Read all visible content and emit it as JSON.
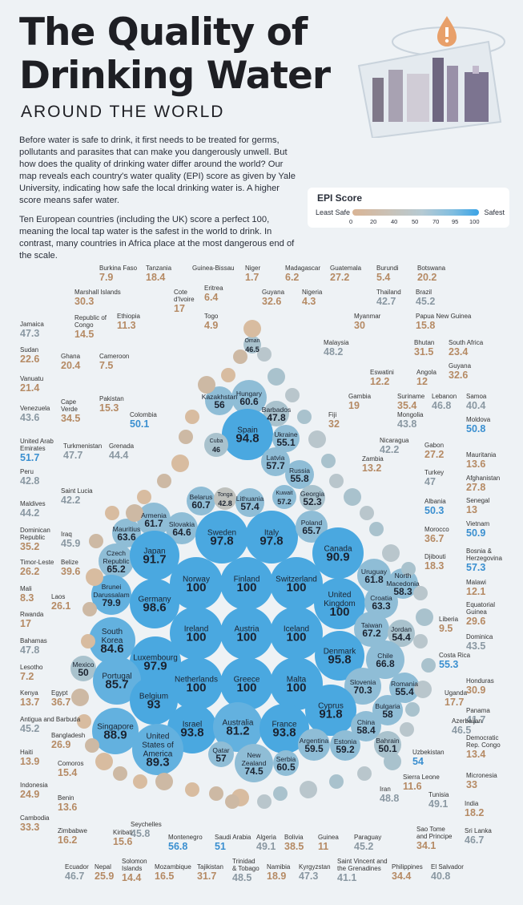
{
  "title_line1": "The Quality of",
  "title_line2": "Drinking Water",
  "subtitle": "AROUND THE WORLD",
  "intro_p1": "Before water is safe to drink, it first needs to be treated for germs, pollutants and parasites that can make you dangerously unwell. But how does the quality of drinking water differ around the world? Our map reveals each country's water quality (EPI) score as given by Yale University, indicating how safe the local drinking water is. A higher score means safer water.",
  "intro_p2": "Ten European countries (including the UK) score a perfect 100, meaning the local tap water is the safest in the world to drink. In contrast, many countries in Africa place at the most dangerous end of the scale.",
  "legend": {
    "title": "EPI Score",
    "left": "Least Safe",
    "right": "Safest",
    "ticks": [
      "0",
      "20",
      "40",
      "50",
      "70",
      "95",
      "100"
    ]
  },
  "colors": {
    "low": "#c8a585",
    "mid": "#a9b8bf",
    "high": "#3aa3e6",
    "bubble_high": "#4aa8e0"
  },
  "chart_data": {
    "type": "bubble",
    "metric": "EPI Score",
    "inner": [
      {
        "c": "Oman",
        "v": 46.5
      },
      {
        "c": "Hungary",
        "v": 60.6
      },
      {
        "c": "Kazakhstan",
        "v": 56
      },
      {
        "c": "Barbados",
        "v": 47.8
      },
      {
        "c": "Spain",
        "v": 94.8
      },
      {
        "c": "Ukraine",
        "v": 55.1
      },
      {
        "c": "Cuba",
        "v": 46
      },
      {
        "c": "Latvia",
        "v": 57.7
      },
      {
        "c": "Russia",
        "v": 55.8
      },
      {
        "c": "Belarus",
        "v": 60.7
      },
      {
        "c": "Tonga",
        "v": 42.8
      },
      {
        "c": "Lithuania",
        "v": 57.4
      },
      {
        "c": "Kuwait",
        "v": 57.2
      },
      {
        "c": "Georgia",
        "v": 52.3
      },
      {
        "c": "Armenia",
        "v": 61.7
      },
      {
        "c": "Slovakia",
        "v": 64.6
      },
      {
        "c": "Sweden",
        "v": 97.8
      },
      {
        "c": "Italy",
        "v": 97.8
      },
      {
        "c": "Poland",
        "v": 65.7
      },
      {
        "c": "Mauritius",
        "v": 63.6
      },
      {
        "c": "Czech Republic",
        "v": 65.2
      },
      {
        "c": "Japan",
        "v": 91.7
      },
      {
        "c": "Canada",
        "v": 90.9
      },
      {
        "c": "Norway",
        "v": 100
      },
      {
        "c": "Finland",
        "v": 100
      },
      {
        "c": "Switzerland",
        "v": 100
      },
      {
        "c": "Uruguay",
        "v": 61.8
      },
      {
        "c": "North Macedonia",
        "v": 58.3
      },
      {
        "c": "Brunei Darussalam",
        "v": 79.9
      },
      {
        "c": "Germany",
        "v": 98.6
      },
      {
        "c": "United Kingdom",
        "v": 100
      },
      {
        "c": "Croatia",
        "v": 63.3
      },
      {
        "c": "Ireland",
        "v": 100
      },
      {
        "c": "Austria",
        "v": 100
      },
      {
        "c": "Iceland",
        "v": 100
      },
      {
        "c": "Taiwan",
        "v": 67.2
      },
      {
        "c": "South Korea",
        "v": 84.6
      },
      {
        "c": "Jordan",
        "v": 54.4
      },
      {
        "c": "Luxembourg",
        "v": 97.9
      },
      {
        "c": "Denmark",
        "v": 95.8
      },
      {
        "c": "Mexico",
        "v": 50
      },
      {
        "c": "Chile",
        "v": 66.8
      },
      {
        "c": "Portugal",
        "v": 85.7
      },
      {
        "c": "Netherlands",
        "v": 100
      },
      {
        "c": "Greece",
        "v": 100
      },
      {
        "c": "Malta",
        "v": 100
      },
      {
        "c": "Slovenia",
        "v": 70.3
      },
      {
        "c": "Romania",
        "v": 55.4
      },
      {
        "c": "Belgium",
        "v": 93
      },
      {
        "c": "Cyprus",
        "v": 91.8
      },
      {
        "c": "Bulgaria",
        "v": 58
      },
      {
        "c": "Singapore",
        "v": 88.9
      },
      {
        "c": "Israel",
        "v": 93.8
      },
      {
        "c": "Australia",
        "v": 81.2
      },
      {
        "c": "France",
        "v": 93.8
      },
      {
        "c": "China",
        "v": 58.4
      },
      {
        "c": "United States of America",
        "v": 89.3
      },
      {
        "c": "Bahrain",
        "v": 50.1
      },
      {
        "c": "Argentina",
        "v": 59.5
      },
      {
        "c": "Estonia",
        "v": 59.2
      },
      {
        "c": "Qatar",
        "v": 57
      },
      {
        "c": "New Zealand",
        "v": 74.5
      },
      {
        "c": "Serbia",
        "v": 60.5
      }
    ],
    "outer": [
      {
        "c": "Burkina Faso",
        "v": 7.9
      },
      {
        "c": "Tanzania",
        "v": 18.4
      },
      {
        "c": "Guinea-Bissau",
        "v": null
      },
      {
        "c": "Niger",
        "v": 1.7
      },
      {
        "c": "Madagascar",
        "v": 6.2
      },
      {
        "c": "Guatemala",
        "v": 27.2
      },
      {
        "c": "Burundi",
        "v": 5.4
      },
      {
        "c": "Botswana",
        "v": 20.2
      },
      {
        "c": "Cote d'Ivoire",
        "v": 17
      },
      {
        "c": "Eritrea",
        "v": 6.4
      },
      {
        "c": "Guyana",
        "v": 32.6
      },
      {
        "c": "Nigeria",
        "v": 4.3
      },
      {
        "c": "Marshall Islands",
        "v": 30.3
      },
      {
        "c": "Togo",
        "v": 4.9
      },
      {
        "c": "Thailand",
        "v": 42.7
      },
      {
        "c": "Brazil",
        "v": 45.2
      },
      {
        "c": "Republic of Congo",
        "v": 14.5
      },
      {
        "c": "Ethiopia",
        "v": 11.3
      },
      {
        "c": "Myanmar",
        "v": 30
      },
      {
        "c": "Papua New Guinea",
        "v": 15.8
      },
      {
        "c": "Jamaica",
        "v": 47.3
      },
      {
        "c": "Malaysia",
        "v": 48.2
      },
      {
        "c": "Bhutan",
        "v": 31.5
      },
      {
        "c": "South Africa",
        "v": 23.4
      },
      {
        "c": "Sudan",
        "v": 22.6
      },
      {
        "c": "Ghana",
        "v": 20.4
      },
      {
        "c": "Cameroon",
        "v": 7.5
      },
      {
        "c": "Eswatini",
        "v": 12.2
      },
      {
        "c": "Angola",
        "v": 12
      },
      {
        "c": "Guyana",
        "v": 32.6
      },
      {
        "c": "Vanuatu",
        "v": 21.4
      },
      {
        "c": "Pakistan",
        "v": 15.3
      },
      {
        "c": "Gambia",
        "v": 19
      },
      {
        "c": "Suriname",
        "v": 35.4
      },
      {
        "c": "Lebanon",
        "v": 46.8
      },
      {
        "c": "Samoa",
        "v": 40.4
      },
      {
        "c": "Venezuela",
        "v": 43.6
      },
      {
        "c": "Cape Verde",
        "v": 34.5
      },
      {
        "c": "Colombia",
        "v": 50.1
      },
      {
        "c": "Fiji",
        "v": 32
      },
      {
        "c": "Mongolia",
        "v": 43.8
      },
      {
        "c": "Moldova",
        "v": 50.8
      },
      {
        "c": "United Arab Emirates",
        "v": 51.7
      },
      {
        "c": "Turkmenistan",
        "v": 47.7
      },
      {
        "c": "Grenada",
        "v": 44.4
      },
      {
        "c": "Nicaragua",
        "v": 42.2
      },
      {
        "c": "Gabon",
        "v": 27.2
      },
      {
        "c": "Zambia",
        "v": 13.2
      },
      {
        "c": "Mauritania",
        "v": 13.6
      },
      {
        "c": "Peru",
        "v": 42.8
      },
      {
        "c": "Saint Lucia",
        "v": 42.2
      },
      {
        "c": "Turkey",
        "v": 47
      },
      {
        "c": "Afghanistan",
        "v": 27.8
      },
      {
        "c": "Maldives",
        "v": 44.2
      },
      {
        "c": "Albania",
        "v": 50.3
      },
      {
        "c": "Senegal",
        "v": 13
      },
      {
        "c": "Dominican Republic",
        "v": 35.2
      },
      {
        "c": "Iraq",
        "v": 45.9
      },
      {
        "c": "Morocco",
        "v": 36.7
      },
      {
        "c": "Vietnam",
        "v": 50.9
      },
      {
        "c": "Timor-Leste",
        "v": 26.2
      },
      {
        "c": "Belize",
        "v": 39.6
      },
      {
        "c": "Djibouti",
        "v": 18.3
      },
      {
        "c": "Bosnia & Herzegovina",
        "v": 57.3
      },
      {
        "c": "Mali",
        "v": 8.3
      },
      {
        "c": "Laos",
        "v": 26.1
      },
      {
        "c": "Malawi",
        "v": 12.1
      },
      {
        "c": "Rwanda",
        "v": 17
      },
      {
        "c": "Equatorial Guinea",
        "v": 29.6
      },
      {
        "c": "Liberia",
        "v": 9.5
      },
      {
        "c": "Bahamas",
        "v": 47.8
      },
      {
        "c": "Dominica",
        "v": 43.5
      },
      {
        "c": "Lesotho",
        "v": 7.2
      },
      {
        "c": "Costa Rica",
        "v": 55.3
      },
      {
        "c": "Honduras",
        "v": 30.9
      },
      {
        "c": "Kenya",
        "v": 13.7
      },
      {
        "c": "Egypt",
        "v": 36.7
      },
      {
        "c": "Uganda",
        "v": 17.7
      },
      {
        "c": "Panama",
        "v": 41.7
      },
      {
        "c": "Antigua and Barbuda",
        "v": 45.2
      },
      {
        "c": "Azerbaijan",
        "v": 46.5
      },
      {
        "c": "Bangladesh",
        "v": 26.9
      },
      {
        "c": "Democratic Rep. Congo",
        "v": 13.4
      },
      {
        "c": "Haiti",
        "v": 13.9
      },
      {
        "c": "Comoros",
        "v": 15.4
      },
      {
        "c": "Uzbekistan",
        "v": 54
      },
      {
        "c": "Micronesia",
        "v": 33
      },
      {
        "c": "Sierra Leone",
        "v": 11.6
      },
      {
        "c": "Indonesia",
        "v": 24.9
      },
      {
        "c": "Benin",
        "v": 13.6
      },
      {
        "c": "Iran",
        "v": 48.8
      },
      {
        "c": "Tunisia",
        "v": 49.1
      },
      {
        "c": "India",
        "v": 18.2
      },
      {
        "c": "Cambodia",
        "v": 33.3
      },
      {
        "c": "Seychelles",
        "v": 45.8
      },
      {
        "c": "Sri Lanka",
        "v": 46.7
      },
      {
        "c": "Zimbabwe",
        "v": 16.2
      },
      {
        "c": "Kiribati",
        "v": 15.6
      },
      {
        "c": "Montenegro",
        "v": 56.8
      },
      {
        "c": "Saudi Arabia",
        "v": 51
      },
      {
        "c": "Algeria",
        "v": 49.1
      },
      {
        "c": "Bolivia",
        "v": 38.5
      },
      {
        "c": "Guinea",
        "v": 11
      },
      {
        "c": "Paraguay",
        "v": 45.2
      },
      {
        "c": "Sao Tome and Principe",
        "v": 34.1
      },
      {
        "c": "Ecuador",
        "v": 46.7
      },
      {
        "c": "Nepal",
        "v": 25.9
      },
      {
        "c": "Solomon Islands",
        "v": 14.4
      },
      {
        "c": "Mozambique",
        "v": 16.5
      },
      {
        "c": "Tajikistan",
        "v": 31.7
      },
      {
        "c": "Trinidad & Tobago",
        "v": 48.5
      },
      {
        "c": "Namibia",
        "v": 18.9
      },
      {
        "c": "Kyrgyzstan",
        "v": 47.3
      },
      {
        "c": "Saint Vincent and the Grenadines",
        "v": 41.1
      },
      {
        "c": "Philippines",
        "v": 34.4
      },
      {
        "c": "El Salvador",
        "v": 40.8
      }
    ]
  },
  "inner_display": [
    [
      "Oman",
      "46.5"
    ],
    [
      "Hungary",
      "60.6"
    ],
    [
      "Kazakhstan",
      "56"
    ],
    [
      "Barbados",
      "47.8"
    ],
    [
      "Spain",
      "94.8"
    ],
    [
      "Ukraine",
      "55.1"
    ],
    [
      "Cuba",
      "46"
    ],
    [
      "Latvia",
      "57.7"
    ],
    [
      "Russia",
      "55.8"
    ],
    [
      "Belarus",
      "60.7"
    ],
    [
      "Tonga",
      "42.8"
    ],
    [
      "Lithuania",
      "57.4"
    ],
    [
      "Kuwait",
      "57.2"
    ],
    [
      "Georgia",
      "52.3"
    ],
    [
      "Armenia",
      "61.7"
    ],
    [
      "Slovakia",
      "64.6"
    ],
    [
      "Sweden",
      "97.8"
    ],
    [
      "Italy",
      "97.8"
    ],
    [
      "Poland",
      "65.7"
    ],
    [
      "Mauritius",
      "63.6"
    ],
    [
      "Czech\nRepublic",
      "65.2"
    ],
    [
      "Japan",
      "91.7"
    ],
    [
      "Canada",
      "90.9"
    ],
    [
      "Norway",
      "100"
    ],
    [
      "Finland",
      "100"
    ],
    [
      "Switzerland",
      "100"
    ],
    [
      "Uruguay",
      "61.8"
    ],
    [
      "North\nMacedonia",
      "58.3"
    ],
    [
      "Brunei\nDarussalam",
      "79.9"
    ],
    [
      "Germany",
      "98.6"
    ],
    [
      "United\nKingdom",
      "100"
    ],
    [
      "Croatia",
      "63.3"
    ],
    [
      "Ireland",
      "100"
    ],
    [
      "Austria",
      "100"
    ],
    [
      "Iceland",
      "100"
    ],
    [
      "Taiwan",
      "67.2"
    ],
    [
      "South\nKorea",
      "84.6"
    ],
    [
      "Jordan",
      "54.4"
    ],
    [
      "Luxembourg",
      "97.9"
    ],
    [
      "Denmark",
      "95.8"
    ],
    [
      "Mexico",
      "50"
    ],
    [
      "Chile",
      "66.8"
    ],
    [
      "Portugal",
      "85.7"
    ],
    [
      "Netherlands",
      "100"
    ],
    [
      "Greece",
      "100"
    ],
    [
      "Malta",
      "100"
    ],
    [
      "Slovenia",
      "70.3"
    ],
    [
      "Romania",
      "55.4"
    ],
    [
      "Belgium",
      "93"
    ],
    [
      "Cyprus",
      "91.8"
    ],
    [
      "Bulgaria",
      "58"
    ],
    [
      "Singapore",
      "88.9"
    ],
    [
      "Israel",
      "93.8"
    ],
    [
      "Australia",
      "81.2"
    ],
    [
      "France",
      "93.8"
    ],
    [
      "China",
      "58.4"
    ],
    [
      "United\nStates of\nAmerica",
      "89.3"
    ],
    [
      "Bahrain",
      "50.1"
    ],
    [
      "Argentina",
      "59.5"
    ],
    [
      "Estonia",
      "59.2"
    ],
    [
      "Qatar",
      "57"
    ],
    [
      "New\nZealand",
      "74.5"
    ],
    [
      "Serbia",
      "60.5"
    ]
  ],
  "outer_display": [
    [
      "Burkina Faso",
      "7.9"
    ],
    [
      "Tanzania",
      "18.4"
    ],
    [
      "Guinea-Bissau",
      ""
    ],
    [
      "Niger",
      "1.7"
    ],
    [
      "Madagascar",
      "6.2"
    ],
    [
      "Guatemala",
      "27.2"
    ],
    [
      "Burundi",
      "5.4"
    ],
    [
      "Botswana",
      "20.2"
    ],
    [
      "Cote\nd'Ivoire",
      "17"
    ],
    [
      "Eritrea",
      "6.4"
    ],
    [
      "Guyana",
      "32.6"
    ],
    [
      "Nigeria",
      "4.3"
    ],
    [
      "Marshall Islands",
      "30.3"
    ],
    [
      "Togo",
      "4.9"
    ],
    [
      "Thailand",
      "42.7"
    ],
    [
      "Brazil",
      "45.2"
    ],
    [
      "Republic of\nCongo",
      "14.5"
    ],
    [
      "Ethiopia",
      "11.3"
    ],
    [
      "Myanmar",
      "30"
    ],
    [
      "Papua New Guinea",
      "15.8"
    ],
    [
      "Jamaica",
      "47.3"
    ],
    [
      "Malaysia",
      "48.2"
    ],
    [
      "Bhutan",
      "31.5"
    ],
    [
      "South Africa",
      "23.4"
    ],
    [
      "Sudan",
      "22.6"
    ],
    [
      "Ghana",
      "20.4"
    ],
    [
      "Cameroon",
      "7.5"
    ],
    [
      "Eswatini",
      "12.2"
    ],
    [
      "Angola",
      "12"
    ],
    [
      "Guyana",
      "32.6"
    ],
    [
      "Vanuatu",
      "21.4"
    ],
    [
      "Pakistan",
      "15.3"
    ],
    [
      "Gambia",
      "19"
    ],
    [
      "Suriname",
      "35.4"
    ],
    [
      "Lebanon",
      "46.8"
    ],
    [
      "Samoa",
      "40.4"
    ],
    [
      "Venezuela",
      "43.6"
    ],
    [
      "Cape\nVerde",
      "34.5"
    ],
    [
      "Colombia",
      "50.1"
    ],
    [
      "Fiji",
      "32"
    ],
    [
      "Mongolia",
      "43.8"
    ],
    [
      "Moldova",
      "50.8"
    ],
    [
      "United Arab\nEmirates",
      "51.7"
    ],
    [
      "Turkmenistan",
      "47.7"
    ],
    [
      "Grenada",
      "44.4"
    ],
    [
      "Nicaragua",
      "42.2"
    ],
    [
      "Gabon",
      "27.2"
    ],
    [
      "Zambia",
      "13.2"
    ],
    [
      "Mauritania",
      "13.6"
    ],
    [
      "Peru",
      "42.8"
    ],
    [
      "Saint Lucia",
      "42.2"
    ],
    [
      "Turkey",
      "47"
    ],
    [
      "Afghanistan",
      "27.8"
    ],
    [
      "Maldives",
      "44.2"
    ],
    [
      "Albania",
      "50.3"
    ],
    [
      "Senegal",
      "13"
    ],
    [
      "Dominican\nRepublic",
      "35.2"
    ],
    [
      "Iraq",
      "45.9"
    ],
    [
      "Morocco",
      "36.7"
    ],
    [
      "Vietnam",
      "50.9"
    ],
    [
      "Timor-Leste",
      "26.2"
    ],
    [
      "Belize",
      "39.6"
    ],
    [
      "Djibouti",
      "18.3"
    ],
    [
      "Bosnia &\nHerzegovina",
      "57.3"
    ],
    [
      "Mali",
      "8.3"
    ],
    [
      "Laos",
      "26.1"
    ],
    [
      "Malawi",
      "12.1"
    ],
    [
      "Rwanda",
      "17"
    ],
    [
      "Equatorial\nGuinea",
      "29.6"
    ],
    [
      "Liberia",
      "9.5"
    ],
    [
      "Bahamas",
      "47.8"
    ],
    [
      "Dominica",
      "43.5"
    ],
    [
      "Lesotho",
      "7.2"
    ],
    [
      "Costa Rica",
      "55.3"
    ],
    [
      "Honduras",
      "30.9"
    ],
    [
      "Kenya",
      "13.7"
    ],
    [
      "Egypt",
      "36.7"
    ],
    [
      "Uganda",
      "17.7"
    ],
    [
      "Panama",
      "41.7"
    ],
    [
      "Antigua and Barbuda",
      "45.2"
    ],
    [
      "Azerbaijan",
      "46.5"
    ],
    [
      "Bangladesh",
      "26.9"
    ],
    [
      "Democratic\nRep. Congo",
      "13.4"
    ],
    [
      "Haiti",
      "13.9"
    ],
    [
      "Comoros",
      "15.4"
    ],
    [
      "Uzbekistan",
      "54"
    ],
    [
      "Micronesia",
      "33"
    ],
    [
      "Sierra Leone",
      "11.6"
    ],
    [
      "Indonesia",
      "24.9"
    ],
    [
      "Benin",
      "13.6"
    ],
    [
      "Iran",
      "48.8"
    ],
    [
      "Tunisia",
      "49.1"
    ],
    [
      "India",
      "18.2"
    ],
    [
      "Cambodia",
      "33.3"
    ],
    [
      "Seychelles",
      "45.8"
    ],
    [
      "Sri Lanka",
      "46.7"
    ],
    [
      "Zimbabwe",
      "16.2"
    ],
    [
      "Kiribati",
      "15.6"
    ],
    [
      "Montenegro",
      "56.8"
    ],
    [
      "Saudi Arabia",
      "51"
    ],
    [
      "Algeria",
      "49.1"
    ],
    [
      "Bolivia",
      "38.5"
    ],
    [
      "Guinea",
      "11"
    ],
    [
      "Paraguay",
      "45.2"
    ],
    [
      "Sao Tome\nand Principe",
      "34.1"
    ],
    [
      "Ecuador",
      "46.7"
    ],
    [
      "Nepal",
      "25.9"
    ],
    [
      "Solomon\nIslands",
      "14.4"
    ],
    [
      "Mozambique",
      "16.5"
    ],
    [
      "Tajikistan",
      "31.7"
    ],
    [
      "Trinidad\n& Tobago",
      "48.5"
    ],
    [
      "Namibia",
      "18.9"
    ],
    [
      "Kyrgyzstan",
      "47.3"
    ],
    [
      "Saint Vincent and\nthe Grenadines",
      "41.1"
    ],
    [
      "Philippines",
      "34.4"
    ],
    [
      "El Salvador",
      "40.8"
    ]
  ]
}
